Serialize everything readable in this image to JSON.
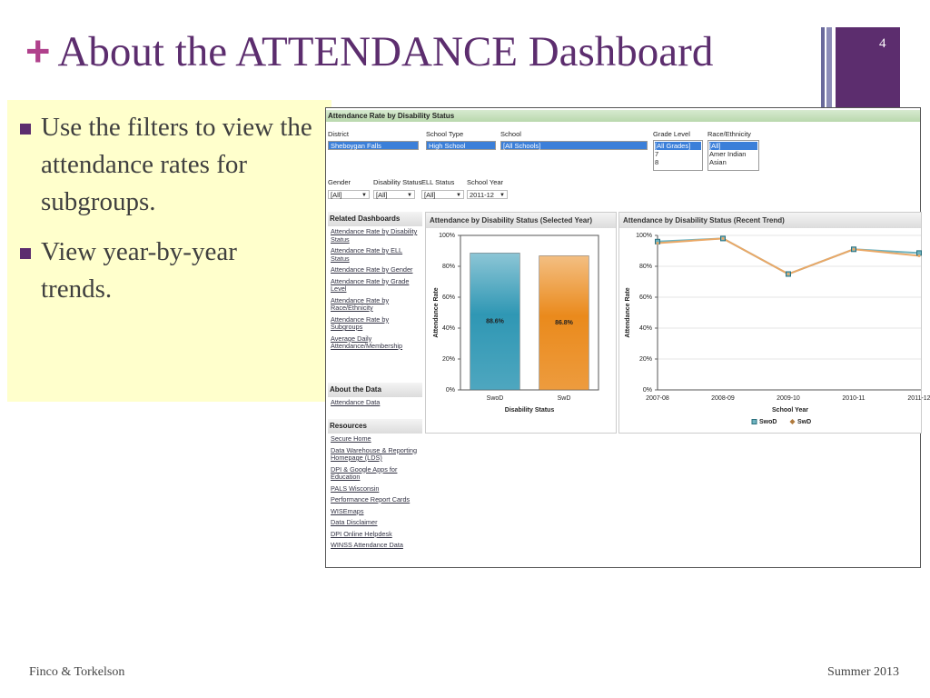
{
  "slide": {
    "title": "About the ATTENDANCE Dashboard",
    "page_number": 4,
    "bullets": [
      "Use the filters to view the attendance rates for subgroups.",
      "View year-by-year trends."
    ],
    "footer_left": "Finco & Torkelson",
    "footer_right": "Summer 2013"
  },
  "dashboard": {
    "header": "Attendance Rate by Disability Status",
    "filters_row1": [
      {
        "label": "District",
        "value": "Sheboygan Falls"
      },
      {
        "label": "School Type",
        "value": "High School"
      },
      {
        "label": "School",
        "value": "[All Schools]"
      },
      {
        "label": "Grade Level",
        "options": [
          "[All Grades]",
          "7",
          "8"
        ]
      },
      {
        "label": "Race/Ethnicity",
        "options": [
          "[All]",
          "Amer Indian",
          "Asian"
        ]
      }
    ],
    "filters_row2": [
      {
        "label": "Gender",
        "value": "[All]"
      },
      {
        "label": "Disability Status",
        "value": "[All]"
      },
      {
        "label": "ELL Status",
        "value": "[All]"
      },
      {
        "label": "School Year",
        "value": "2011-12"
      }
    ],
    "related": {
      "title": "Related Dashboards",
      "links": [
        "Attendance Rate by Disability Status",
        "Attendance Rate by ELL Status",
        "Attendance Rate by Gender",
        "Attendance Rate by Grade Level",
        "Attendance Rate by Race/Ethnicity",
        "Attendance Rate by Subgroups",
        "Average Daily Attendance/Membership"
      ]
    },
    "about": {
      "title": "About the Data",
      "links": [
        "Attendance Data"
      ]
    },
    "resources": {
      "title": "Resources",
      "links": [
        "Secure Home",
        "Data Warehouse & Reporting Homepage (LDS)",
        "DPI & Google Apps for Education",
        "PALS Wisconsin",
        "Performance Report Cards",
        "WISEmaps",
        "Data Disclaimer",
        "DPI Online Helpdesk",
        "WINSS Attendance Data"
      ]
    }
  },
  "chart_data": [
    {
      "type": "bar",
      "title": "Attendance by Disability Status (Selected Year)",
      "categories": [
        "SwoD",
        "SwD"
      ],
      "values": [
        88.6,
        86.8
      ],
      "value_labels": [
        "88.6%",
        "86.8%"
      ],
      "colors": [
        "#2f97b4",
        "#ea8a1c"
      ],
      "x_label": "Disability Status",
      "y_label": "Attendance Rate",
      "ylim": [
        0,
        100
      ],
      "yticks": [
        {
          "value": 0,
          "label": "0%"
        },
        {
          "value": 20,
          "label": "20%"
        },
        {
          "value": 40,
          "label": "40%"
        },
        {
          "value": 60,
          "label": "60%"
        },
        {
          "value": 80,
          "label": "80%"
        },
        {
          "value": 100,
          "label": "100%"
        }
      ],
      "grid": false
    },
    {
      "type": "line",
      "title": "Attendance by Disability Status (Recent Trend)",
      "categories": [
        "2007-08",
        "2008-09",
        "2009-10",
        "2010-11",
        "2011-12"
      ],
      "series": [
        {
          "name": "SwoD",
          "color": "#6fb3c0",
          "values": [
            96,
            98,
            75,
            91,
            88.6
          ]
        },
        {
          "name": "SwD",
          "color": "#eaa866",
          "values": [
            95,
            98,
            75,
            91,
            86.8
          ]
        }
      ],
      "x_label": "School Year",
      "y_label": "Attendance Rate",
      "ylim": [
        0,
        100
      ],
      "yticks": [
        {
          "value": 0,
          "label": "0%"
        },
        {
          "value": 20,
          "label": "20%"
        },
        {
          "value": 40,
          "label": "40%"
        },
        {
          "value": 60,
          "label": "60%"
        },
        {
          "value": 80,
          "label": "80%"
        },
        {
          "value": 100,
          "label": "100%"
        }
      ],
      "grid": true
    }
  ]
}
